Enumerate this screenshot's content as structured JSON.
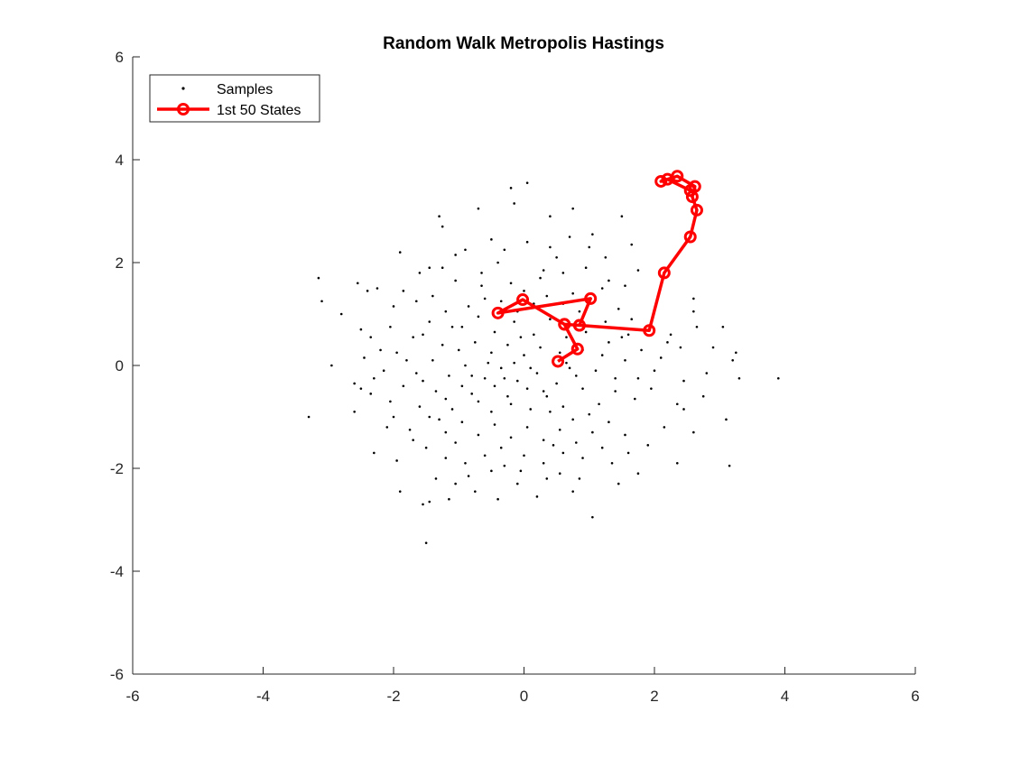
{
  "chart_data": {
    "type": "scatter",
    "title": "Random Walk Metropolis Hastings",
    "xlabel": "",
    "ylabel": "",
    "xlim": [
      -6,
      6
    ],
    "ylim": [
      -6,
      6
    ],
    "xticks": [
      -6,
      -4,
      -2,
      0,
      2,
      4,
      6
    ],
    "yticks": [
      -6,
      -4,
      -2,
      0,
      2,
      4,
      6
    ],
    "grid": false,
    "legend_position": "top-left",
    "series": [
      {
        "name": "Samples",
        "style": "points",
        "color": "#000000",
        "points": [
          [
            -0.2,
            3.45
          ],
          [
            0.05,
            3.55
          ],
          [
            -1.3,
            2.9
          ],
          [
            -1.25,
            2.7
          ],
          [
            -0.7,
            3.05
          ],
          [
            -0.15,
            3.15
          ],
          [
            0.4,
            2.9
          ],
          [
            0.75,
            3.05
          ],
          [
            1.5,
            2.9
          ],
          [
            -1.9,
            2.2
          ],
          [
            -1.6,
            1.8
          ],
          [
            -2.25,
            1.5
          ],
          [
            -3.15,
            1.7
          ],
          [
            -3.1,
            1.25
          ],
          [
            -2.8,
            1.0
          ],
          [
            -2.95,
            0.0
          ],
          [
            -3.3,
            -1.0
          ],
          [
            -2.55,
            1.6
          ],
          [
            -2.4,
            1.45
          ],
          [
            -2.5,
            0.7
          ],
          [
            -2.35,
            0.55
          ],
          [
            -2.5,
            -0.45
          ],
          [
            -2.35,
            -0.55
          ],
          [
            -2.6,
            -0.35
          ],
          [
            -2.3,
            -1.7
          ],
          [
            -1.9,
            -2.45
          ],
          [
            -1.55,
            -2.7
          ],
          [
            -1.5,
            -3.45
          ],
          [
            -1.45,
            -2.65
          ],
          [
            -1.15,
            -2.6
          ],
          [
            -0.4,
            -2.6
          ],
          [
            -0.75,
            -2.45
          ],
          [
            -0.1,
            -2.3
          ],
          [
            0.55,
            -2.1
          ],
          [
            0.75,
            -2.45
          ],
          [
            1.05,
            -2.95
          ],
          [
            1.75,
            -2.1
          ],
          [
            2.35,
            -1.9
          ],
          [
            2.6,
            -1.3
          ],
          [
            3.1,
            -1.05
          ],
          [
            3.15,
            -1.95
          ],
          [
            3.9,
            -0.25
          ],
          [
            3.3,
            -0.25
          ],
          [
            3.2,
            0.1
          ],
          [
            3.25,
            0.25
          ],
          [
            3.05,
            0.75
          ],
          [
            2.65,
            0.75
          ],
          [
            2.6,
            1.3
          ],
          [
            2.6,
            1.05
          ],
          [
            2.25,
            0.6
          ],
          [
            2.2,
            0.45
          ],
          [
            2.35,
            -0.75
          ],
          [
            2.45,
            -0.85
          ],
          [
            1.65,
            2.35
          ],
          [
            1.75,
            1.85
          ],
          [
            1.55,
            1.55
          ],
          [
            1.3,
            1.65
          ],
          [
            1.05,
            2.55
          ],
          [
            0.7,
            2.5
          ],
          [
            0.4,
            2.3
          ],
          [
            0.05,
            2.4
          ],
          [
            -0.5,
            2.45
          ],
          [
            -0.9,
            2.25
          ],
          [
            -1.05,
            2.15
          ],
          [
            -0.4,
            2.0
          ],
          [
            0.3,
            1.85
          ],
          [
            0.6,
            1.8
          ],
          [
            0.95,
            1.9
          ],
          [
            -1.45,
            1.9
          ],
          [
            -1.85,
            1.45
          ],
          [
            -2.0,
            1.15
          ],
          [
            -1.4,
            1.35
          ],
          [
            -1.05,
            1.65
          ],
          [
            -0.65,
            1.55
          ],
          [
            -0.2,
            1.6
          ],
          [
            0.25,
            1.7
          ],
          [
            0.75,
            1.4
          ],
          [
            1.2,
            1.5
          ],
          [
            1.45,
            1.1
          ],
          [
            1.65,
            0.9
          ],
          [
            1.5,
            0.55
          ],
          [
            1.3,
            0.45
          ],
          [
            1.2,
            0.2
          ],
          [
            1.55,
            0.1
          ],
          [
            1.8,
            0.3
          ],
          [
            2.0,
            -0.1
          ],
          [
            1.95,
            -0.45
          ],
          [
            1.7,
            -0.65
          ],
          [
            1.4,
            -0.5
          ],
          [
            1.15,
            -0.75
          ],
          [
            0.9,
            -0.45
          ],
          [
            0.6,
            -0.8
          ],
          [
            0.35,
            -0.6
          ],
          [
            0.1,
            -0.85
          ],
          [
            -0.25,
            -0.6
          ],
          [
            -0.5,
            -0.9
          ],
          [
            -0.8,
            -0.55
          ],
          [
            -1.1,
            -0.85
          ],
          [
            -1.35,
            -0.5
          ],
          [
            -1.6,
            -0.8
          ],
          [
            -1.85,
            -0.4
          ],
          [
            -2.05,
            -0.7
          ],
          [
            -2.15,
            -0.1
          ],
          [
            -1.95,
            0.25
          ],
          [
            -1.7,
            0.55
          ],
          [
            -1.45,
            0.85
          ],
          [
            -1.2,
            1.05
          ],
          [
            -0.95,
            0.75
          ],
          [
            -0.7,
            0.95
          ],
          [
            -0.45,
            0.65
          ],
          [
            -0.15,
            0.85
          ],
          [
            0.15,
            0.6
          ],
          [
            0.4,
            0.9
          ],
          [
            0.65,
            0.55
          ],
          [
            0.9,
            0.3
          ],
          [
            1.1,
            -0.1
          ],
          [
            0.8,
            -0.2
          ],
          [
            0.5,
            -0.35
          ],
          [
            0.2,
            -0.15
          ],
          [
            -0.1,
            -0.3
          ],
          [
            -0.35,
            -0.05
          ],
          [
            -0.6,
            -0.25
          ],
          [
            -0.9,
            0.0
          ],
          [
            -1.15,
            -0.2
          ],
          [
            -1.4,
            0.1
          ],
          [
            -1.65,
            -0.15
          ],
          [
            -1.25,
            0.4
          ],
          [
            -1.0,
            0.3
          ],
          [
            -0.75,
            0.45
          ],
          [
            -0.5,
            0.25
          ],
          [
            -0.25,
            0.4
          ],
          [
            0.0,
            0.2
          ],
          [
            0.25,
            0.35
          ],
          [
            0.45,
            0.1
          ],
          [
            0.7,
            -0.05
          ],
          [
            0.3,
            -0.5
          ],
          [
            0.05,
            -0.45
          ],
          [
            -0.2,
            -0.75
          ],
          [
            -0.45,
            -0.4
          ],
          [
            -0.7,
            -0.7
          ],
          [
            -0.95,
            -0.4
          ],
          [
            -1.2,
            -0.65
          ],
          [
            -1.45,
            -1.0
          ],
          [
            -1.2,
            -1.3
          ],
          [
            -0.95,
            -1.1
          ],
          [
            -0.7,
            -1.35
          ],
          [
            -0.45,
            -1.15
          ],
          [
            -0.2,
            -1.4
          ],
          [
            0.05,
            -1.2
          ],
          [
            0.3,
            -1.45
          ],
          [
            0.55,
            -1.25
          ],
          [
            0.8,
            -1.5
          ],
          [
            1.05,
            -1.3
          ],
          [
            1.3,
            -1.1
          ],
          [
            1.55,
            -1.35
          ],
          [
            1.2,
            -1.6
          ],
          [
            0.9,
            -1.8
          ],
          [
            0.6,
            -1.7
          ],
          [
            0.3,
            -1.9
          ],
          [
            0.0,
            -1.75
          ],
          [
            -0.3,
            -1.95
          ],
          [
            -0.6,
            -1.75
          ],
          [
            -0.9,
            -1.9
          ],
          [
            -1.2,
            -1.8
          ],
          [
            -1.5,
            -1.6
          ],
          [
            -1.75,
            -1.25
          ],
          [
            -2.0,
            -1.0
          ],
          [
            -1.7,
            -1.45
          ],
          [
            -0.85,
            -2.15
          ],
          [
            -0.5,
            -2.05
          ],
          [
            -0.05,
            -2.05
          ],
          [
            0.35,
            -2.2
          ],
          [
            1.35,
            -1.9
          ],
          [
            1.6,
            -1.7
          ],
          [
            -0.35,
            1.25
          ],
          [
            0.0,
            1.45
          ],
          [
            0.35,
            1.35
          ],
          [
            0.6,
            1.2
          ],
          [
            0.85,
            1.05
          ],
          [
            -0.6,
            1.3
          ],
          [
            -0.85,
            1.15
          ],
          [
            -1.1,
            0.75
          ],
          [
            -1.55,
            0.6
          ],
          [
            -1.8,
            0.1
          ],
          [
            -2.2,
            0.3
          ],
          [
            -2.3,
            -0.25
          ],
          [
            -2.1,
            -1.2
          ],
          [
            -0.15,
            0.05
          ],
          [
            0.1,
            -0.05
          ],
          [
            -0.05,
            0.55
          ],
          [
            0.55,
            0.25
          ],
          [
            0.95,
            0.65
          ],
          [
            1.25,
            0.85
          ],
          [
            1.4,
            -0.25
          ],
          [
            1.75,
            -0.25
          ],
          [
            2.1,
            0.15
          ],
          [
            2.4,
            0.35
          ],
          [
            2.45,
            -0.3
          ],
          [
            2.15,
            -1.2
          ],
          [
            1.9,
            -1.55
          ],
          [
            1.0,
            2.3
          ],
          [
            1.25,
            2.1
          ],
          [
            0.5,
            2.1
          ],
          [
            -0.3,
            2.25
          ],
          [
            -0.65,
            1.8
          ],
          [
            -1.25,
            1.9
          ],
          [
            -1.65,
            1.25
          ],
          [
            -2.05,
            0.75
          ],
          [
            -2.45,
            0.15
          ],
          [
            -2.6,
            -0.9
          ],
          [
            -1.95,
            -1.85
          ],
          [
            -1.35,
            -2.2
          ],
          [
            -1.05,
            -2.3
          ],
          [
            0.2,
            -2.55
          ],
          [
            0.85,
            -2.2
          ],
          [
            1.45,
            -2.3
          ],
          [
            2.75,
            -0.6
          ],
          [
            2.9,
            0.35
          ],
          [
            2.8,
            -0.15
          ],
          [
            -0.55,
            0.05
          ],
          [
            -0.3,
            -0.25
          ],
          [
            0.4,
            -0.9
          ],
          [
            0.75,
            -1.05
          ],
          [
            1.0,
            -0.95
          ],
          [
            -1.55,
            -0.3
          ],
          [
            -1.3,
            -1.05
          ],
          [
            -0.1,
            1.05
          ],
          [
            0.15,
            1.2
          ],
          [
            -0.8,
            -0.2
          ],
          [
            -1.05,
            -1.5
          ],
          [
            -0.35,
            -1.6
          ],
          [
            0.45,
            -1.55
          ],
          [
            0.65,
            0.05
          ],
          [
            1.6,
            0.6
          ]
        ]
      },
      {
        "name": "1st 50 States",
        "style": "line-markers",
        "color": "#ff0000",
        "points": [
          [
            0.52,
            0.08
          ],
          [
            0.82,
            0.32
          ],
          [
            0.62,
            0.8
          ],
          [
            0.85,
            0.78
          ],
          [
            1.02,
            1.3
          ],
          [
            -0.4,
            1.02
          ],
          [
            -0.02,
            1.28
          ],
          [
            0.62,
            0.8
          ],
          [
            0.85,
            0.78
          ],
          [
            1.92,
            0.68
          ],
          [
            2.15,
            1.8
          ],
          [
            2.55,
            2.5
          ],
          [
            2.65,
            3.02
          ],
          [
            2.58,
            3.28
          ],
          [
            2.62,
            3.48
          ],
          [
            2.35,
            3.68
          ],
          [
            2.1,
            3.58
          ],
          [
            2.2,
            3.62
          ],
          [
            2.55,
            3.4
          ]
        ]
      }
    ]
  }
}
